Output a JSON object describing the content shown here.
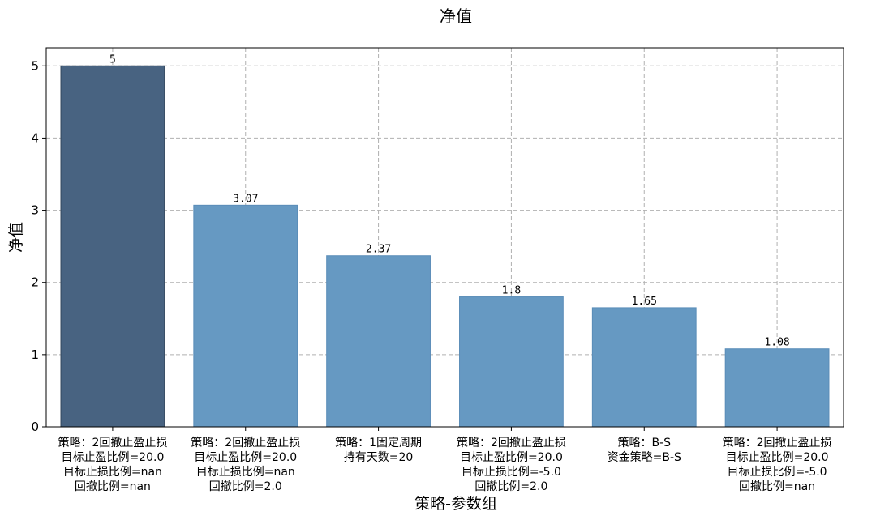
{
  "chart_data": {
    "type": "bar",
    "title": "净值",
    "xlabel": "策略-参数组",
    "ylabel": "净值",
    "ylim": [
      0,
      5.25
    ],
    "yticks": [
      0,
      1,
      2,
      3,
      4,
      5
    ],
    "grid": true,
    "categories": [
      [
        "策略：2回撤止盈止损",
        "目标止盈比例=20.0",
        "目标止损比例=nan",
        "回撤比例=nan"
      ],
      [
        "策略：2回撤止盈止损",
        "目标止盈比例=20.0",
        "目标止损比例=nan",
        "回撤比例=2.0"
      ],
      [
        "策略：1固定周期",
        "持有天数=20"
      ],
      [
        "策略：2回撤止盈止损",
        "目标止盈比例=20.0",
        "目标止损比例=-5.0",
        "回撤比例=2.0"
      ],
      [
        "策略：B-S",
        "资金策略=B-S"
      ],
      [
        "策略：2回撤止盈止损",
        "目标止盈比例=20.0",
        "目标止损比例=-5.0",
        "回撤比例=nan"
      ]
    ],
    "values": [
      5,
      3.07,
      2.37,
      1.8,
      1.65,
      1.08
    ],
    "data_labels": [
      "5",
      "3.07",
      "2.37",
      "1.8",
      "1.65",
      "1.08"
    ],
    "colors": [
      "#486381",
      "#6699c2",
      "#6699c2",
      "#6699c2",
      "#6699c2",
      "#6699c2"
    ],
    "highlight_index": 0
  }
}
